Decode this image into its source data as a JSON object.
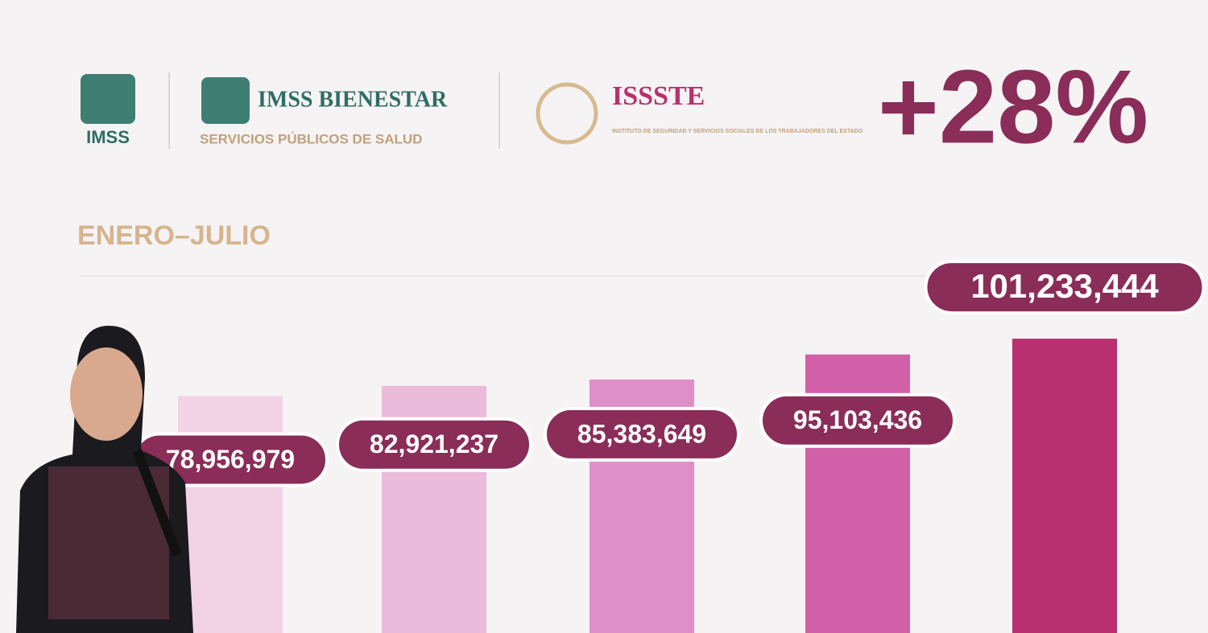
{
  "logos": {
    "imss": "IMSS",
    "bienestar_title": "IMSS BIENESTAR",
    "bienestar_subtitle": "SERVICIOS PÚBLICOS DE SALUD",
    "issste_title": "ISSSTE",
    "issste_subtitle": "INSTITUTO DE SEGURIDAD Y SERVICIOS SOCIALES DE LOS TRABAJADORES DEL ESTADO"
  },
  "chart_data": {
    "type": "bar",
    "title": "ENERO–JULIO",
    "annotation": "+28%",
    "categories": [
      null,
      null,
      null,
      null,
      null
    ],
    "values": [
      78956979,
      82921237,
      85383649,
      95103436,
      101233444
    ],
    "value_labels": [
      "78,956,979",
      "82,921,237",
      "85,383,649",
      "95,103,436",
      "101,233,444"
    ],
    "colors": [
      "#f2d3e6",
      "#ebbbdc",
      "#df8fc8",
      "#d160a9",
      "#b8306f"
    ],
    "label_color": "#8a2d58",
    "ylim": [
      -13000000,
      110000000
    ]
  }
}
